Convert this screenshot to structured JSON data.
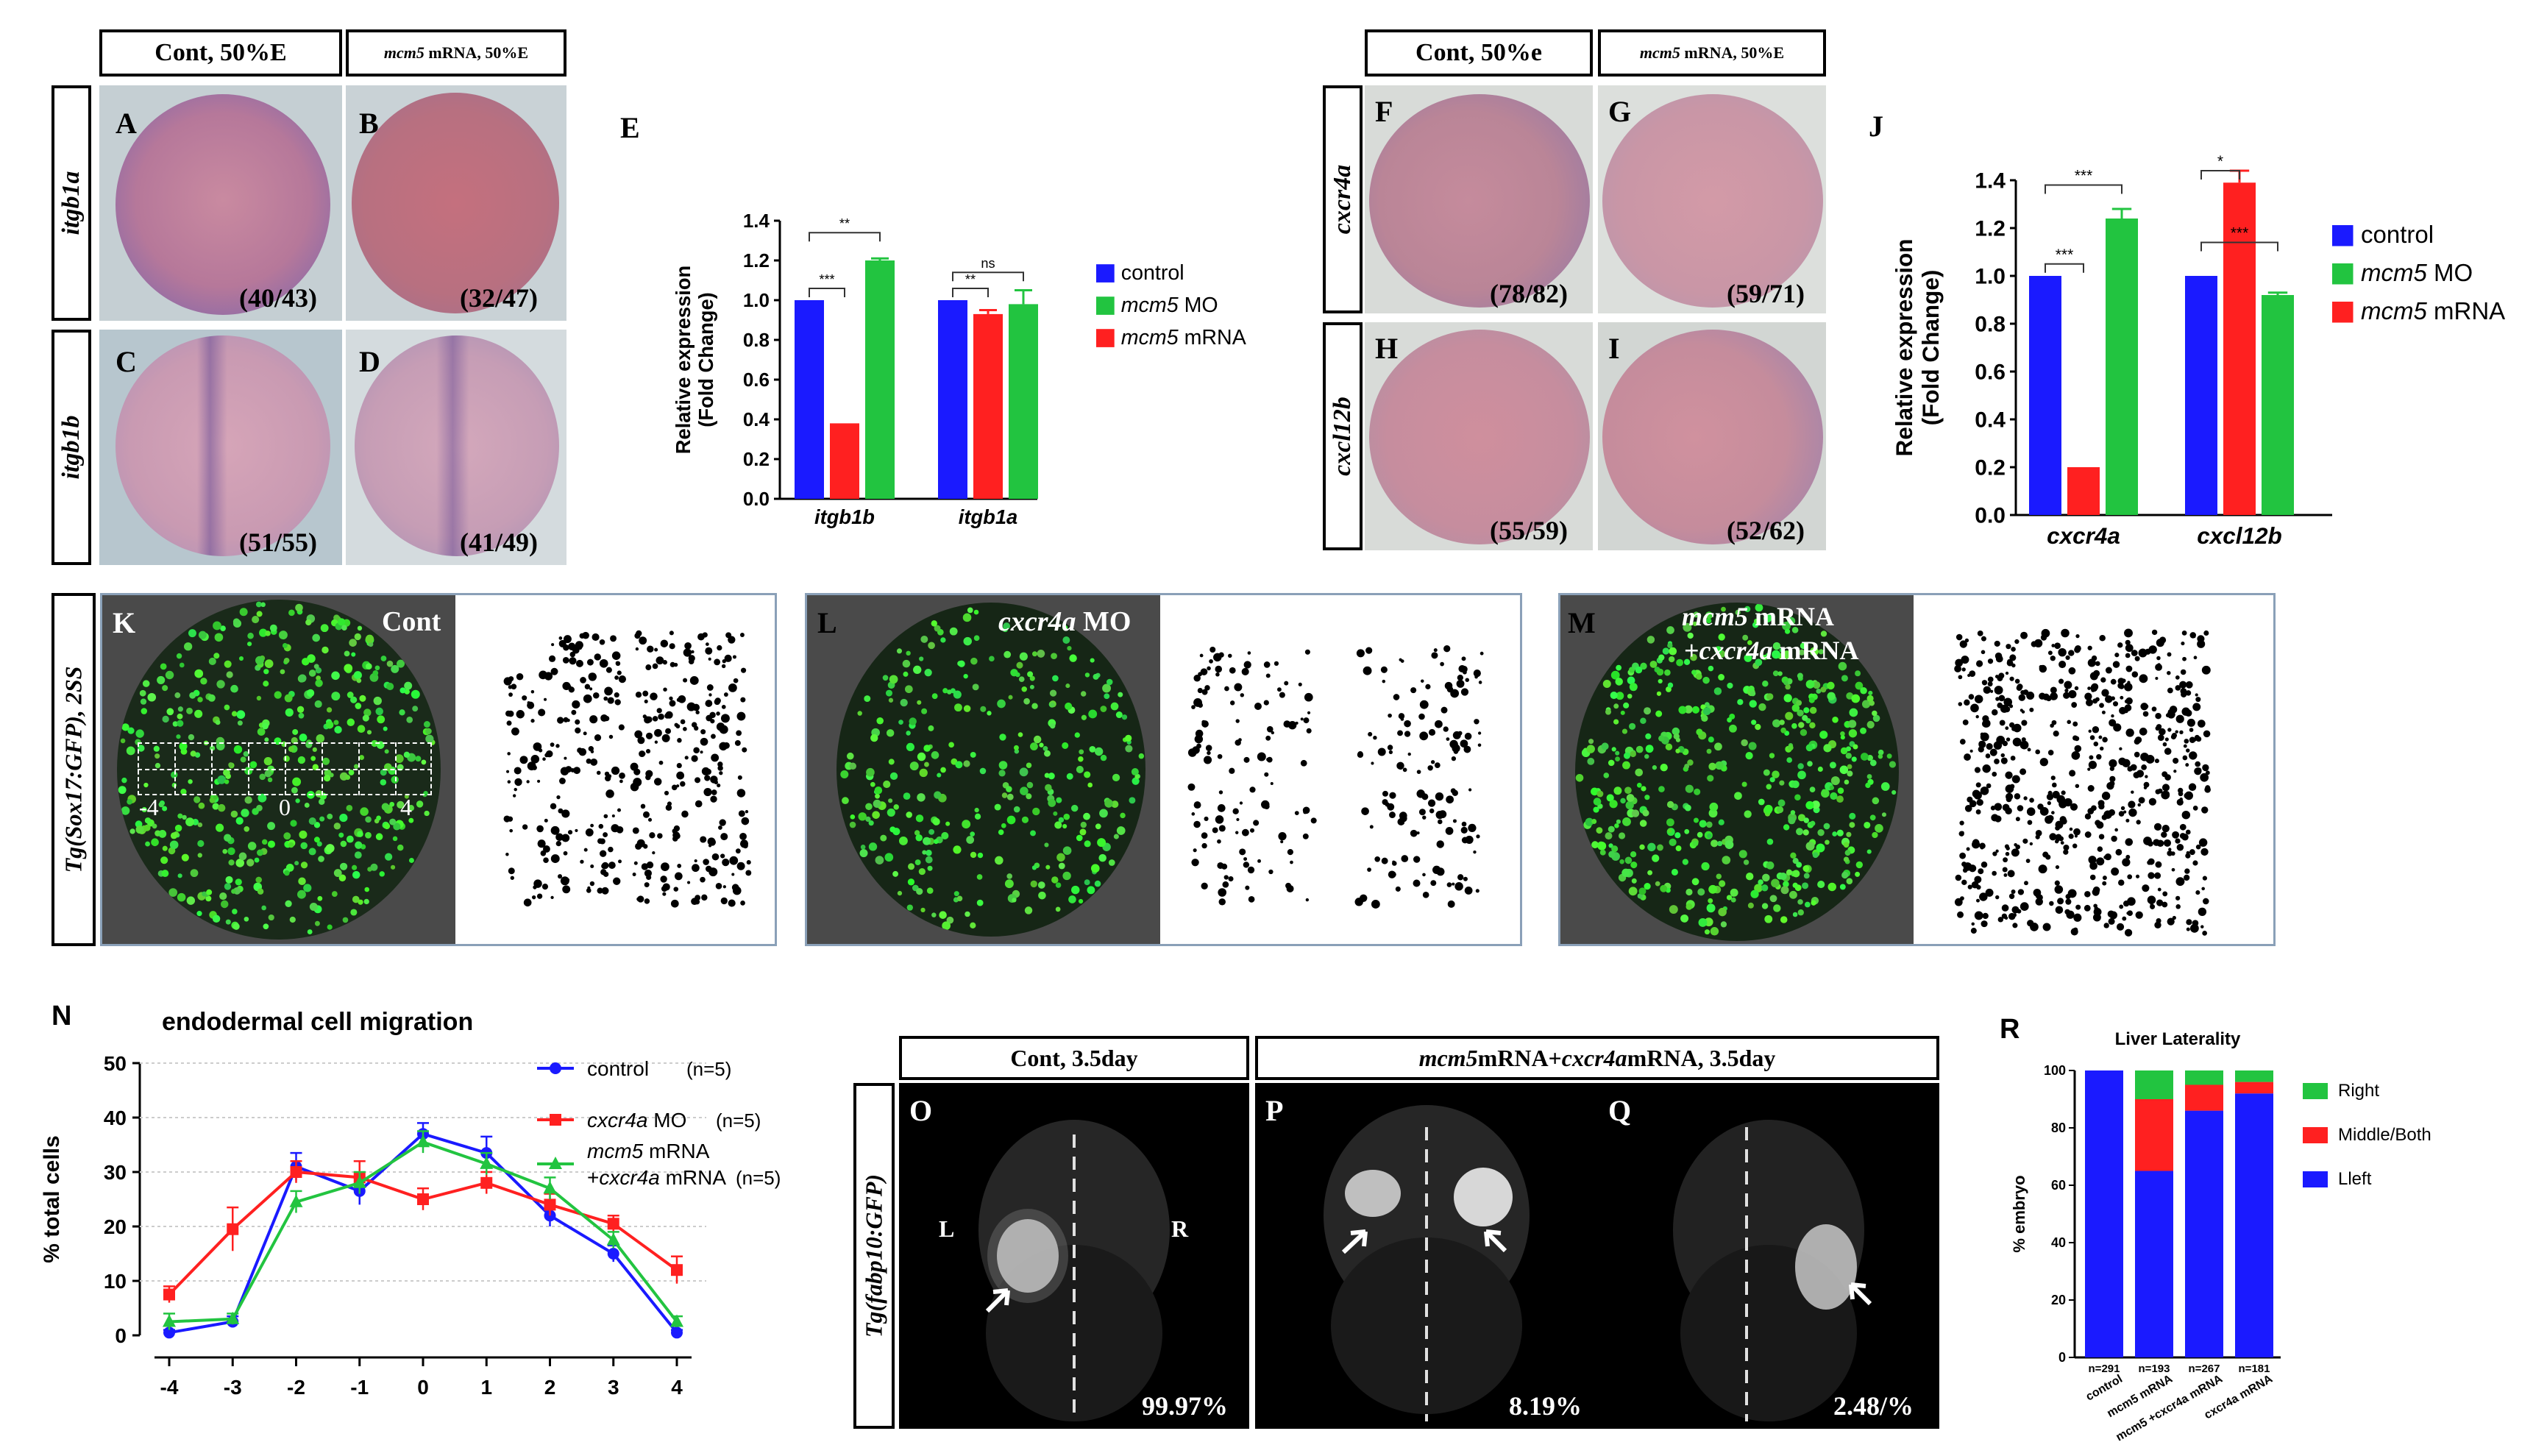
{
  "colors": {
    "control": "#1a1aff",
    "mo": "#22c440",
    "mrna": "#ff2020",
    "rescue": "#22c440"
  },
  "ish": {
    "left_headers": {
      "cont": "Cont, 50%E",
      "mcm5": "mRNA, 50%E",
      "mcm5_italic": "mcm5"
    },
    "right_headers": {
      "cont": "Cont, 50%e",
      "mcm5": "mRNA, 50%E",
      "mcm5_italic": "mcm5"
    },
    "row_labels": {
      "a": "itgb1a",
      "b": "itgb1b",
      "c": "cxcr4a",
      "d": "cxcl12b"
    },
    "panels": {
      "A": {
        "letter": "A",
        "count": "(40/43)"
      },
      "B": {
        "letter": "B",
        "count": "(32/47)"
      },
      "C": {
        "letter": "C",
        "count": "(51/55)"
      },
      "D": {
        "letter": "D",
        "count": "(41/49)"
      },
      "F": {
        "letter": "F",
        "count": "(78/82)"
      },
      "G": {
        "letter": "G",
        "count": "(59/71)"
      },
      "H": {
        "letter": "H",
        "count": "(55/59)"
      },
      "I": {
        "letter": "I",
        "count": "(52/62)"
      }
    }
  },
  "chart_data": [
    {
      "id": "E",
      "letter": "E",
      "type": "bar",
      "ylabel": "Relative expression (Fold Change)",
      "ylabel_line1": "Relative expression",
      "ylabel_line2": "(Fold Change)",
      "ylim": [
        0,
        1.4
      ],
      "yticks": [
        "0.0",
        "0.2",
        "0.4",
        "0.6",
        "0.8",
        "1.0",
        "1.2",
        "1.4"
      ],
      "categories": [
        "itgb1b",
        "itgb1a"
      ],
      "series": [
        {
          "name": "control",
          "name_italic": "",
          "values": [
            1.0,
            1.0
          ],
          "err": [
            0,
            0
          ]
        },
        {
          "name": "mcm5 mRNA",
          "name_italic": "mcm5",
          "name_rest": " mRNA",
          "values": [
            0.38,
            0.93
          ],
          "err": [
            0,
            0.02
          ]
        },
        {
          "name": "mcm5 MO",
          "name_italic": "mcm5",
          "name_rest": " MO",
          "values": [
            1.2,
            0.98
          ],
          "err": [
            0.01,
            0.07
          ]
        }
      ],
      "legend": [
        {
          "italic": "",
          "rest": "control"
        },
        {
          "italic": "mcm5",
          "rest": " MO"
        },
        {
          "italic": "mcm5",
          "rest": " mRNA"
        }
      ],
      "significance": [
        "**",
        "***",
        "ns",
        "**"
      ]
    },
    {
      "id": "J",
      "letter": "J",
      "type": "bar",
      "ylabel": "Relative expression (Fold Change)",
      "ylabel_line1": "Relative expression",
      "ylabel_line2": "(Fold Change)",
      "ylim": [
        0,
        1.4
      ],
      "yticks": [
        "0.0",
        "0.2",
        "0.4",
        "0.6",
        "0.8",
        "1.0",
        "1.2",
        "1.4"
      ],
      "categories": [
        "cxcr4a",
        "cxcl12b"
      ],
      "series": [
        {
          "name": "control",
          "values": [
            1.0,
            1.0
          ],
          "err": [
            0,
            0
          ]
        },
        {
          "name": "mcm5 mRNA",
          "values": [
            0.2,
            1.39
          ],
          "err": [
            0,
            0.05
          ]
        },
        {
          "name": "mcm5 MO",
          "values": [
            1.24,
            0.92
          ],
          "err": [
            0.04,
            0.01
          ]
        }
      ],
      "legend": [
        {
          "italic": "",
          "rest": "control"
        },
        {
          "italic": "mcm5",
          "rest": " MO"
        },
        {
          "italic": "mcm5",
          "rest": " mRNA"
        }
      ],
      "significance": [
        "***",
        "***",
        "***",
        "*"
      ]
    },
    {
      "id": "N",
      "letter": "N",
      "type": "line",
      "title": "endodermal cell migration",
      "ylabel": "% total cells",
      "ylim": [
        0,
        50
      ],
      "yticks": [
        "0",
        "10",
        "20",
        "30",
        "40",
        "50"
      ],
      "x": [
        -4,
        -3,
        -2,
        -1,
        0,
        1,
        2,
        3,
        4
      ],
      "xticks": [
        "-4",
        "-3",
        "-2",
        "-1",
        "0",
        "1",
        "2",
        "3",
        "4"
      ],
      "series": [
        {
          "name": "control (n=5)",
          "values": [
            0.5,
            2.5,
            31,
            26.5,
            37,
            33.5,
            22,
            15,
            0.5
          ],
          "err": [
            0.5,
            1,
            2.5,
            2.5,
            2,
            3,
            2,
            1.5,
            0.5
          ]
        },
        {
          "name": "cxcr4a MO (n=5)",
          "values": [
            7.5,
            19.5,
            30,
            29,
            25,
            28,
            24,
            20.5,
            12
          ],
          "err": [
            1.5,
            4,
            2,
            3,
            2,
            2,
            2,
            1.5,
            2.5
          ]
        },
        {
          "name": "mcm5 mRNA +cxcr4a mRNA (n=5)",
          "values": [
            2.5,
            3,
            24.5,
            28,
            35.5,
            31.5,
            27,
            17.5,
            2.5
          ],
          "err": [
            1.5,
            1,
            2,
            2,
            2,
            2,
            2,
            1.5,
            1
          ]
        }
      ],
      "legend": [
        {
          "italic": "",
          "rest": "control",
          "n": "(n=5)"
        },
        {
          "italic": "cxcr4a",
          "rest": " MO",
          "n": "(n=5)"
        },
        {
          "italic": "mcm5",
          "rest": " mRNA",
          "line2_italic": "cxcr4a",
          "line2_rest": " mRNA",
          "n": "(n=5)"
        }
      ]
    },
    {
      "id": "R",
      "letter": "R",
      "type": "bar",
      "title": "Liver Laterality",
      "ylabel": "% embryo",
      "ylim": [
        0,
        100
      ],
      "yticks": [
        "0",
        "20",
        "40",
        "60",
        "80",
        "100"
      ],
      "categories": [
        "control",
        "mcm5 mRNA",
        "mcm5 +cxcr4a mRNA",
        "cxcr4a mRNA"
      ],
      "n_labels": [
        "n=291",
        "n=193",
        "n=267",
        "n=181"
      ],
      "series": [
        {
          "name": "Lleft",
          "values": [
            100,
            65,
            86,
            92
          ]
        },
        {
          "name": "Middle/Both",
          "values": [
            0,
            25,
            9,
            4
          ]
        },
        {
          "name": "Right",
          "values": [
            0,
            10,
            5,
            4
          ]
        }
      ],
      "legend": [
        "Right",
        "Middle/Both",
        "Lleft"
      ]
    }
  ],
  "sox17": {
    "row_label": "Tg(Sox17:GFP), 2SS",
    "K": {
      "letter": "K",
      "label": "Cont",
      "axis_left": "-4",
      "axis_mid": "0",
      "axis_right": "4"
    },
    "L": {
      "letter": "L",
      "label_italic": "cxcr4a",
      "label_rest": " MO"
    },
    "M": {
      "letter": "M",
      "line1_italic": "mcm5",
      "line1_rest": " mRNA",
      "line2_prefix": "+",
      "line2_italic": "cxcr4a",
      "line2_rest": " mRNA"
    }
  },
  "liver": {
    "row_label": "Tg(fabp10:GFP)",
    "header_cont": "Cont, 3.5day",
    "header_mcm5_a": "mcm5",
    "header_mcm5_b": " mRNA+",
    "header_mcm5_c": "cxcr4a",
    "header_mcm5_d": " mRNA, 3.5day",
    "O": {
      "letter": "O",
      "pct": "99.97%",
      "left": "L",
      "right": "R"
    },
    "P": {
      "letter": "P",
      "pct": "8.19%"
    },
    "Q": {
      "letter": "Q",
      "pct": "2.48/%"
    }
  }
}
